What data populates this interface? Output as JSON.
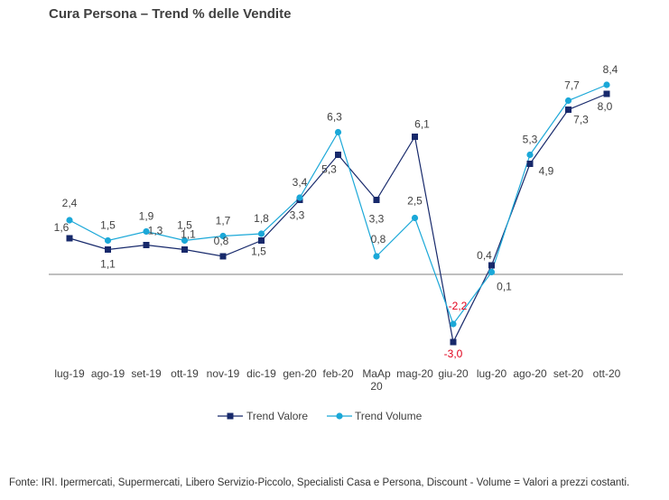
{
  "chart_title": "Cura Persona – Trend % delle Vendite",
  "footer_note": "Fonte: IRI. Ipermercati, Supermercati, Libero Servizio-Piccolo, Specialisti Casa e Persona, Discount -  Volume =  Valori a prezzi costanti.",
  "colors": {
    "valore": "#17296b",
    "volume": "#1ba8d8",
    "negative_label": "#e0001b",
    "label": "#404040",
    "baseline": "#7f7f7f"
  },
  "chart_data": {
    "type": "line",
    "title": "Cura Persona – Trend % delle Vendite",
    "categories": [
      "lug-19",
      "ago-19",
      "set-19",
      "ott-19",
      "nov-19",
      "dic-19",
      "gen-20",
      "feb-20",
      "MaAp 20",
      "mag-20",
      "giu-20",
      "lug-20",
      "ago-20",
      "set-20",
      "ott-20"
    ],
    "series": [
      {
        "name": "Trend Valore",
        "marker": "square",
        "color": "#17296b",
        "values": [
          1.6,
          1.1,
          1.3,
          1.1,
          0.8,
          1.5,
          3.3,
          5.3,
          3.3,
          6.1,
          -3.0,
          0.4,
          4.9,
          7.3,
          8.0
        ],
        "labels": [
          "1,6",
          "1,1",
          "1,3",
          "1,1",
          "0,8",
          "1,5",
          "3,3",
          "5,3",
          "3,3",
          "6,1",
          "-3,0",
          "0,4",
          "4,9",
          "7,3",
          "8,0"
        ]
      },
      {
        "name": "Trend Volume",
        "marker": "circle",
        "color": "#1ba8d8",
        "values": [
          2.4,
          1.5,
          1.9,
          1.5,
          1.7,
          1.8,
          3.4,
          6.3,
          0.8,
          2.5,
          -2.2,
          0.1,
          5.3,
          7.7,
          8.4
        ],
        "labels": [
          "2,4",
          "1,5",
          "1,9",
          "1,5",
          "1,7",
          "1,8",
          "3,4",
          "6,3",
          "0,8",
          "2,5",
          "-2,2",
          "0,1",
          "5,3",
          "7,7",
          "8,4"
        ]
      }
    ],
    "ylim": [
      -4.2,
      10.3
    ],
    "legend_position": "bottom",
    "grid": false
  }
}
